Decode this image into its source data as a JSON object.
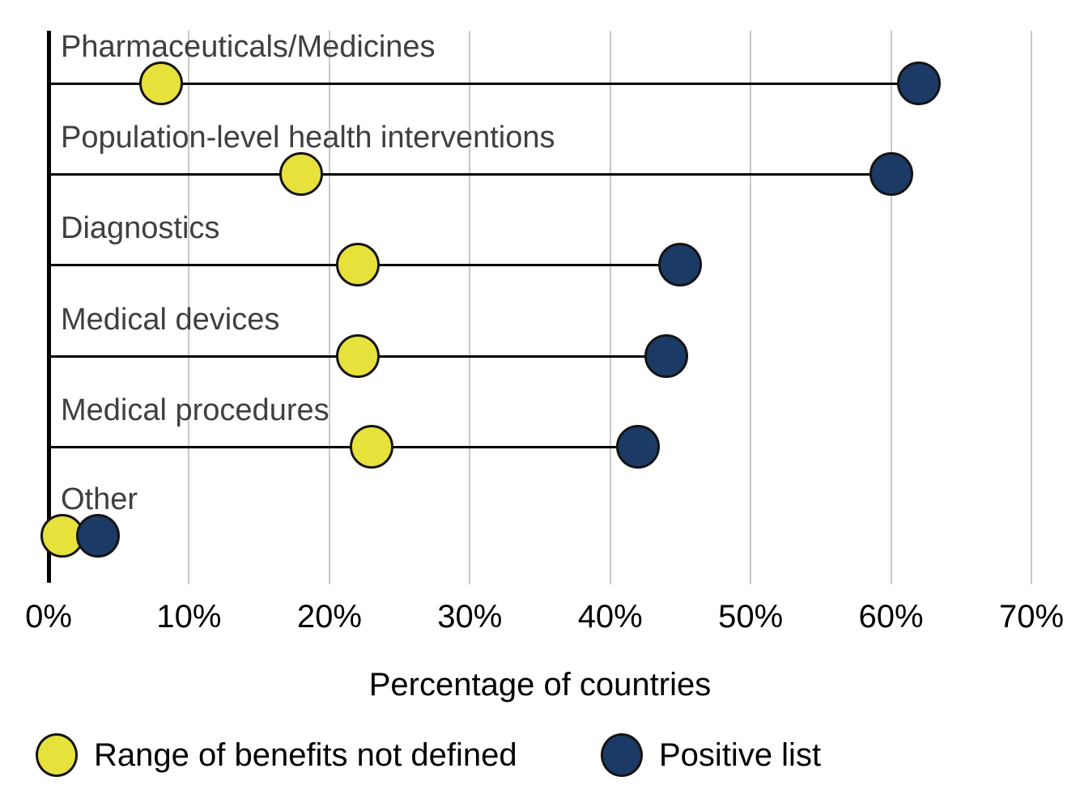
{
  "chart_data": {
    "type": "scatter",
    "subtype": "lollipop-dumbbell",
    "categories": [
      "Pharmaceuticals/Medicines",
      "Population-level health interventions",
      "Diagnostics",
      "Medical devices",
      "Medical procedures",
      "Other"
    ],
    "series": [
      {
        "name": "Range of benefits not defined",
        "color": "#e7e13c",
        "values": [
          8,
          18,
          22,
          22,
          23,
          1
        ]
      },
      {
        "name": "Positive list",
        "color": "#1c3a66",
        "values": [
          62,
          60,
          45,
          44,
          42,
          3.5
        ]
      }
    ],
    "title": "",
    "xlabel": "Percentage of countries",
    "ylabel": "",
    "xlim": [
      0,
      70
    ],
    "x_ticks": [
      0,
      10,
      20,
      30,
      40,
      50,
      60,
      70
    ],
    "x_tick_labels": [
      "0%",
      "10%",
      "20%",
      "30%",
      "40%",
      "50%",
      "60%",
      "70%"
    ],
    "grid": "vertical",
    "legend_position": "bottom"
  },
  "colors": {
    "background": "#ffffff",
    "gridline": "#c9c9c9",
    "axis": "#000000",
    "stem": "#000000",
    "category_label": "#3f3f3f",
    "tick_label": "#000000",
    "marker_outline": "#141414",
    "not_defined_fill": "#e7e13c",
    "positive_list_fill": "#1c3a66"
  }
}
